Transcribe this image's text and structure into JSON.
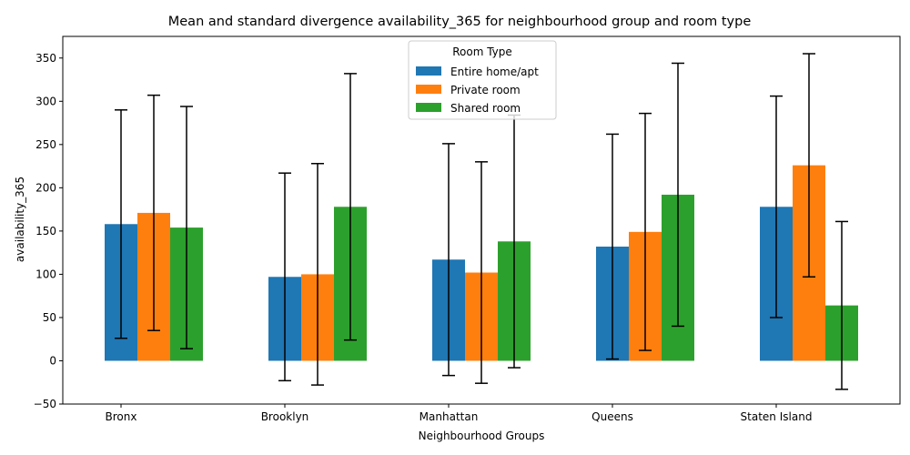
{
  "chart_data": {
    "type": "bar",
    "title": "Mean and standard divergence availability_365 for neighbourhood group and room type",
    "xlabel": "Neighbourhood Groups",
    "ylabel": "availability_365",
    "categories": [
      "Bronx",
      "Brooklyn",
      "Manhattan",
      "Queens",
      "Staten Island"
    ],
    "ylim": [
      -50,
      375
    ],
    "yticks": [
      -50,
      0,
      50,
      100,
      150,
      200,
      250,
      300,
      350
    ],
    "grid": false,
    "legend": {
      "title": "Room Type",
      "placement": "top-center"
    },
    "series": [
      {
        "name": "Entire home/apt",
        "color": "#1f77b4",
        "values": [
          158,
          97,
          117,
          132,
          178
        ],
        "errors": [
          132,
          120,
          134,
          130,
          128
        ]
      },
      {
        "name": "Private room",
        "color": "#ff7f0e",
        "values": [
          171,
          100,
          102,
          149,
          226
        ],
        "errors": [
          136,
          128,
          128,
          137,
          129
        ]
      },
      {
        "name": "Shared room",
        "color": "#2ca02c",
        "values": [
          154,
          178,
          138,
          192,
          64
        ],
        "errors": [
          140,
          154,
          146,
          152,
          97
        ]
      }
    ]
  }
}
